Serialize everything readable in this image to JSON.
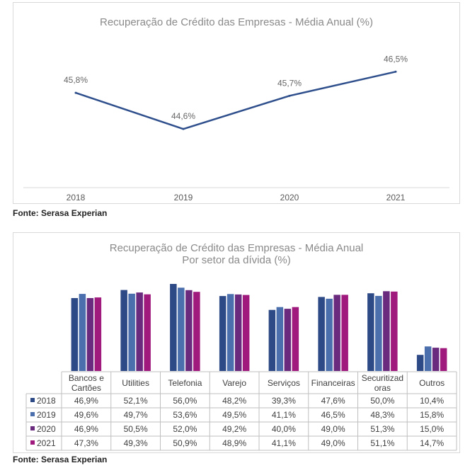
{
  "chart_data": [
    {
      "type": "line",
      "title": "Recuperação de Crédito das Empresas - Média Anual (%)",
      "categories": [
        "2018",
        "2019",
        "2020",
        "2021"
      ],
      "values": [
        45.8,
        44.6,
        45.7,
        46.5
      ],
      "data_labels": [
        "45,8%",
        "44,6%",
        "45,7%",
        "46,5%"
      ],
      "ylim": [
        43.5,
        47.0
      ],
      "color": "#2e4f8c",
      "grid": false,
      "legend": "none"
    },
    {
      "type": "bar",
      "title": "Recuperação de Crédito das Empresas - Média Anual",
      "subtitle": "Por setor da dívida (%)",
      "categories": [
        "Bancos e Cartões",
        "Utilities",
        "Telefonia",
        "Varejo",
        "Serviços",
        "Financeiras",
        "Securitizadoras",
        "Outros"
      ],
      "category_lines": [
        [
          "Bancos e",
          "Cartões"
        ],
        [
          "Utilities"
        ],
        [
          "Telefonia"
        ],
        [
          "Varejo"
        ],
        [
          "Serviços"
        ],
        [
          "Financeiras"
        ],
        [
          "Securitizad",
          "oras"
        ],
        [
          "Outros"
        ]
      ],
      "series": [
        {
          "name": "2018",
          "color": "#2e4a86",
          "values": [
            46.9,
            52.1,
            56.0,
            48.2,
            39.3,
            47.6,
            50.0,
            10.4
          ],
          "labels": [
            "46,9%",
            "52,1%",
            "56,0%",
            "48,2%",
            "39,3%",
            "47,6%",
            "50,0%",
            "10,4%"
          ]
        },
        {
          "name": "2019",
          "color": "#4b6fad",
          "values": [
            49.6,
            49.7,
            53.6,
            49.5,
            41.1,
            46.5,
            48.3,
            15.8
          ],
          "labels": [
            "49,6%",
            "49,7%",
            "53,6%",
            "49,5%",
            "41,1%",
            "46,5%",
            "48,3%",
            "15,8%"
          ]
        },
        {
          "name": "2020",
          "color": "#6a2a7e",
          "values": [
            46.9,
            50.5,
            52.0,
            49.2,
            40.0,
            49.0,
            51.3,
            15.0
          ],
          "labels": [
            "46,9%",
            "50,5%",
            "52,0%",
            "49,2%",
            "40,0%",
            "49,0%",
            "51,3%",
            "15,0%"
          ]
        },
        {
          "name": "2021",
          "color": "#a0197c",
          "values": [
            47.3,
            49.3,
            50.9,
            48.9,
            41.1,
            49.0,
            51.1,
            14.7
          ],
          "labels": [
            "47,3%",
            "49,3%",
            "50,9%",
            "48,9%",
            "41,1%",
            "49,0%",
            "51,1%",
            "14,7%"
          ]
        }
      ],
      "ylim": [
        0,
        60
      ],
      "grid": false,
      "legend": "data-table"
    }
  ],
  "sources": [
    "Fonte: Serasa Experian",
    "Fonte: Serasa Experian"
  ]
}
